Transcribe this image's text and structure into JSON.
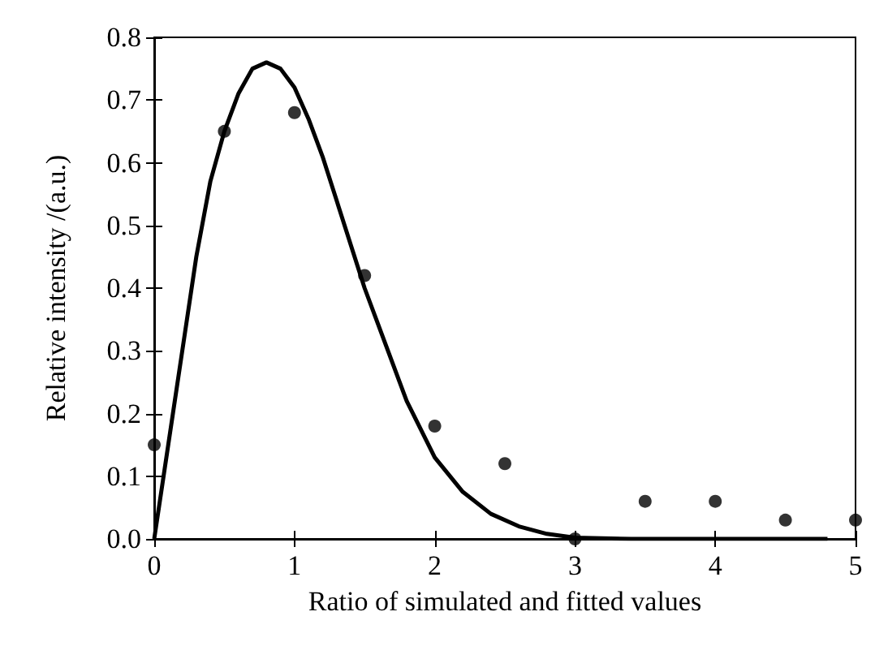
{
  "chart_data": {
    "type": "scatter",
    "xlabel": "Ratio of simulated and fitted values",
    "ylabel": "Relative intensity /(a.u.)",
    "xlim": [
      0,
      5
    ],
    "xticks": [
      0,
      1,
      2,
      3,
      4,
      5
    ],
    "ylim": [
      0,
      0.8
    ],
    "yticks": [
      "0.0",
      0.1,
      0.2,
      0.3,
      0.4,
      0.5,
      0.6,
      0.7,
      0.8
    ],
    "grid": false,
    "series": [
      {
        "marker": "circle",
        "color": "#000000",
        "x": [
          0,
          0.5,
          1,
          1.5,
          2,
          2.5,
          3,
          3.5,
          4,
          4.5,
          5
        ],
        "values": [
          0.15,
          0.65,
          0.68,
          0.42,
          0.18,
          0.12,
          0.0,
          0.06,
          0.06,
          0.03,
          0.03
        ]
      },
      {
        "type": "line",
        "marker": "none",
        "line_style": "solid",
        "color": "#000000",
        "x": [
          0,
          0.1,
          0.2,
          0.3,
          0.4,
          0.5,
          0.6,
          0.7,
          0.8,
          0.9,
          1.0,
          1.1,
          1.2,
          1.3,
          1.4,
          1.5,
          1.6,
          1.8,
          2.0,
          2.2,
          2.4,
          2.6,
          2.8,
          3.0,
          3.4,
          4.8
        ],
        "values": [
          0,
          0.15,
          0.3,
          0.45,
          0.57,
          0.65,
          0.71,
          0.75,
          0.76,
          0.75,
          0.72,
          0.67,
          0.61,
          0.54,
          0.47,
          0.4,
          0.34,
          0.22,
          0.13,
          0.075,
          0.04,
          0.02,
          0.008,
          0.002,
          0,
          0
        ]
      }
    ]
  }
}
